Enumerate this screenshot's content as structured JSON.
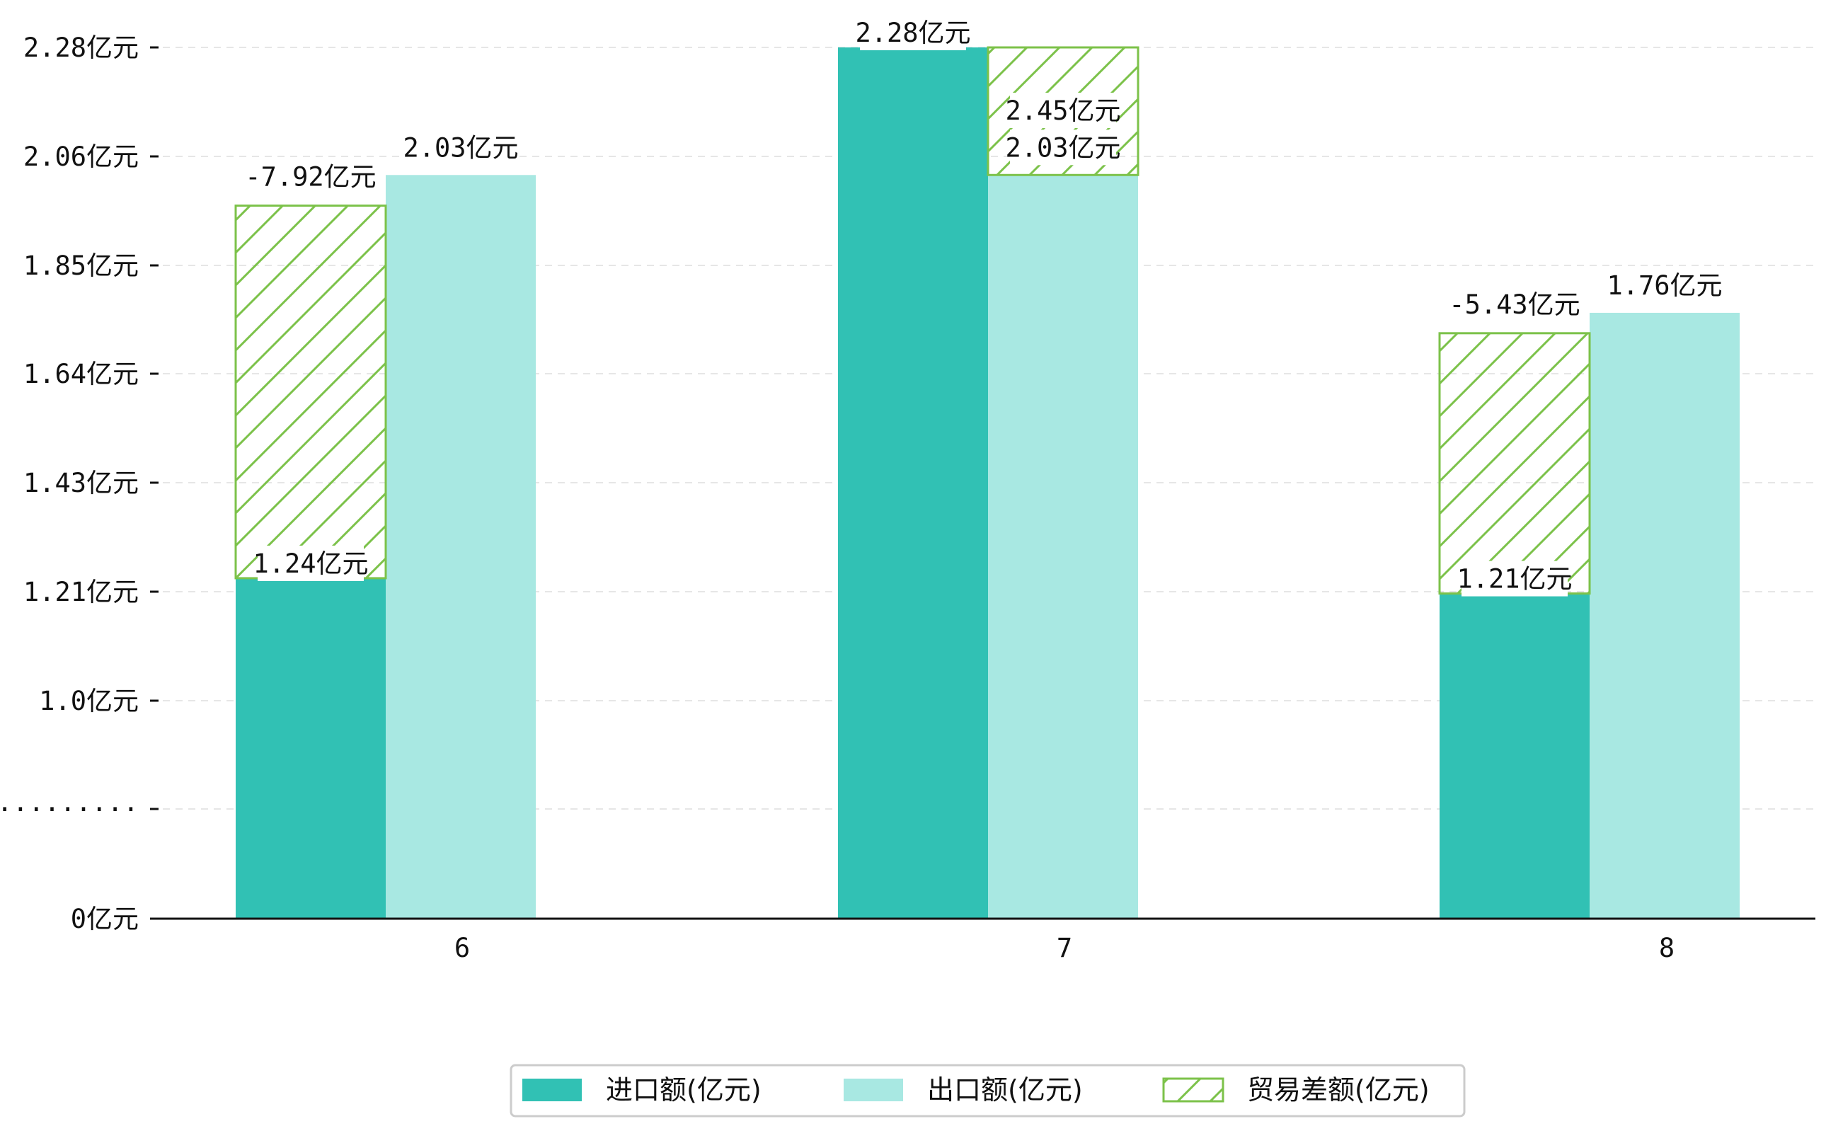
{
  "chart_data": {
    "type": "bar",
    "categories": [
      "6",
      "7",
      "8"
    ],
    "y_axis": {
      "tick_labels": [
        "0亿元",
        "·········",
        "1.0亿元",
        "1.21亿元",
        "1.43亿元",
        "1.64亿元",
        "1.85亿元",
        "2.06亿元",
        "2.28亿元"
      ],
      "note": "broken axis: 0 to 0.8 compressed into first two ticks"
    },
    "series": [
      {
        "name": "进口额(亿元)",
        "values": [
          1.24,
          2.28,
          1.21
        ],
        "labels": [
          "1.24亿元",
          "2.28亿元",
          "1.21亿元"
        ],
        "color": "#31c1b4"
      },
      {
        "name": "出口额(亿元)",
        "values": [
          2.03,
          2.03,
          1.76
        ],
        "labels": [
          "2.03亿元",
          "2.03亿元",
          "1.76亿元"
        ],
        "color": "#a8e8e2"
      },
      {
        "name": "贸易差额(亿元)",
        "values": [
          -7.92,
          2.45,
          -5.43
        ],
        "labels": [
          "-7.92亿元",
          "2.45亿元",
          "-5.43亿元"
        ],
        "color": "#7cc24a",
        "style": "hatched",
        "spans": [
          [
            1.24,
            1.97
          ],
          [
            2.03,
            2.28
          ],
          [
            1.21,
            1.72
          ]
        ]
      }
    ],
    "grid": "horizontal dashed",
    "legend": {
      "position": "bottom-center"
    }
  }
}
